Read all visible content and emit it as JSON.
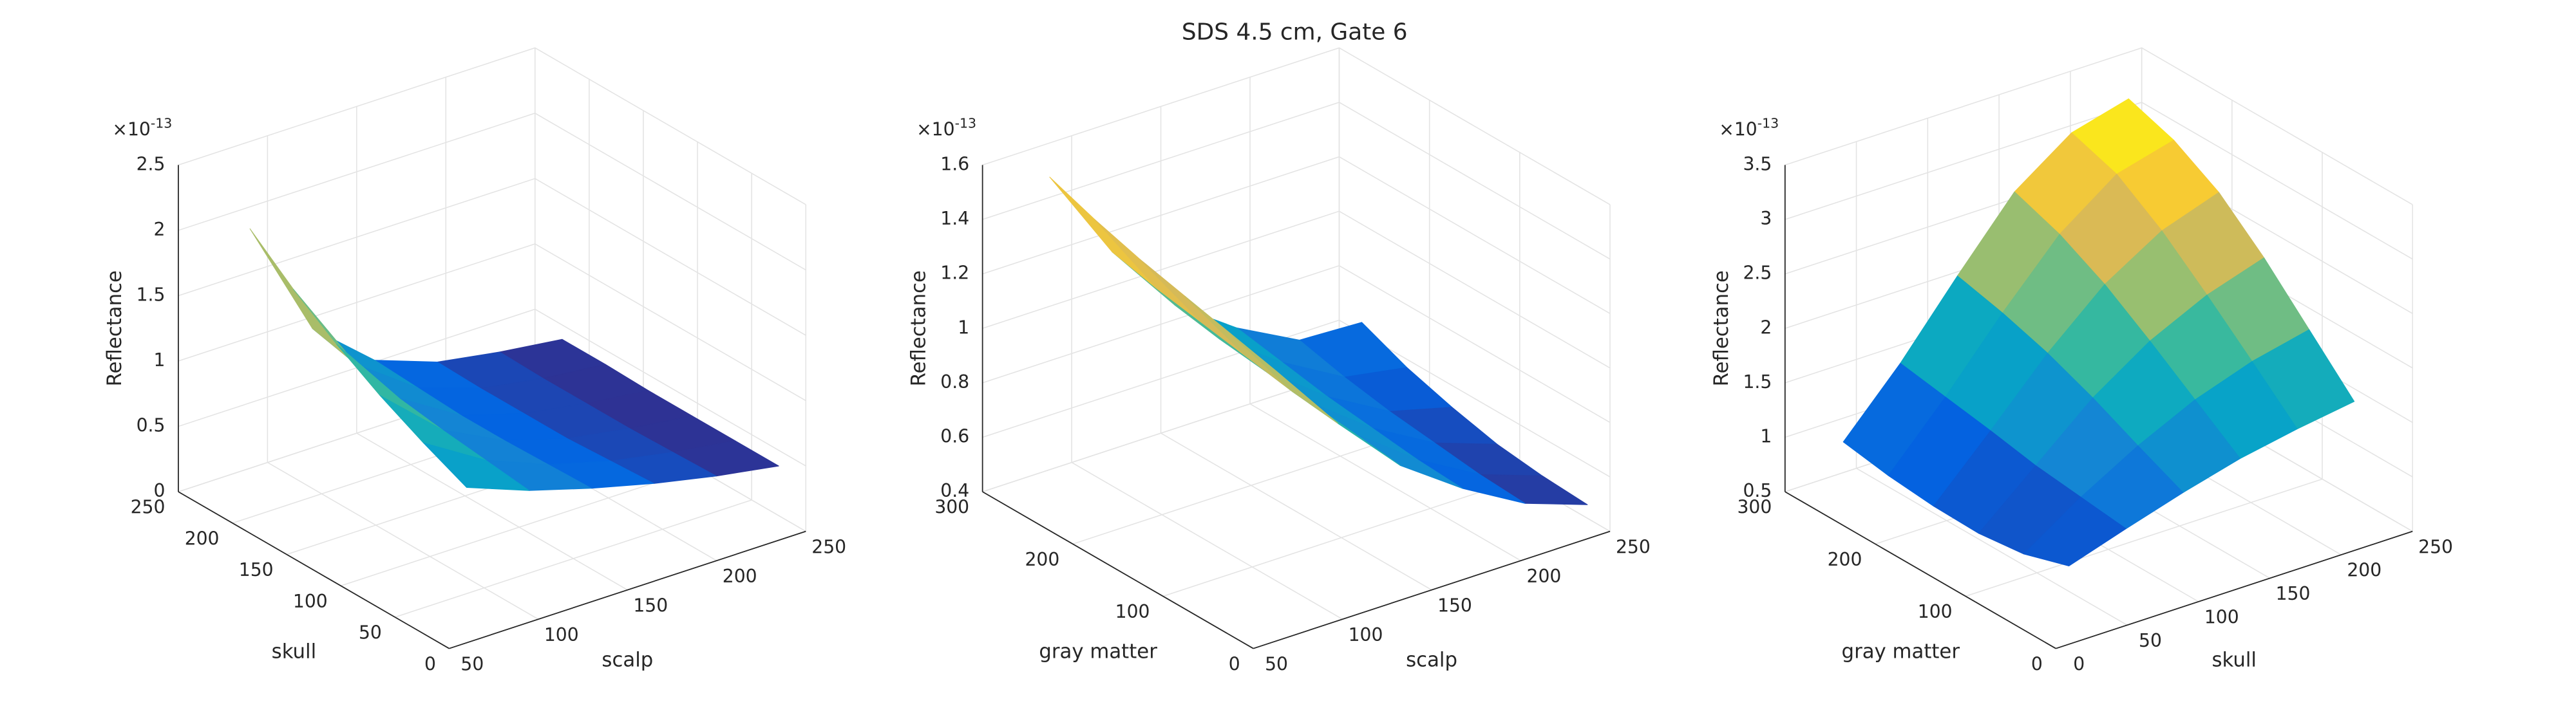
{
  "title": "SDS 4.5 cm, Gate 6",
  "chart_data": [
    {
      "type": "surface",
      "xlabel": "scalp",
      "ylabel": "skull",
      "zlabel": "Reflectance",
      "colormap": "parula",
      "grid": true,
      "zscale_base": "×10",
      "zscale_exponent": -13,
      "x": [
        75,
        110,
        145,
        180,
        215,
        250
      ],
      "y": [
        25,
        65,
        105,
        145,
        185,
        225
      ],
      "z": [
        [
          1.0,
          0.82,
          0.68,
          0.56,
          0.46,
          0.38
        ],
        [
          1.15,
          0.86,
          0.67,
          0.54,
          0.45,
          0.38
        ],
        [
          1.32,
          0.9,
          0.66,
          0.52,
          0.44,
          0.38
        ],
        [
          1.52,
          0.95,
          0.66,
          0.52,
          0.44,
          0.38
        ],
        [
          1.75,
          1.02,
          0.68,
          0.52,
          0.44,
          0.39
        ],
        [
          2.02,
          1.1,
          0.7,
          0.53,
          0.45,
          0.39
        ]
      ],
      "xlim": [
        50,
        250
      ],
      "ylim": [
        0,
        250
      ],
      "zlim": [
        0,
        2.5
      ],
      "xticks": [
        50,
        100,
        150,
        200,
        250
      ],
      "yticks": [
        0,
        50,
        100,
        150,
        200,
        250
      ],
      "zticks": [
        0,
        0.5,
        1,
        1.5,
        2,
        2.5
      ]
    },
    {
      "type": "surface",
      "xlabel": "scalp",
      "ylabel": "gray matter",
      "zlabel": "Reflectance",
      "colormap": "parula",
      "grid": true,
      "zscale_base": "×10",
      "zscale_exponent": -13,
      "x": [
        75,
        110,
        145,
        180,
        215,
        250
      ],
      "y": [
        25,
        75,
        125,
        175,
        225,
        275
      ],
      "z": [
        [
          1.32,
          1.05,
          0.82,
          0.66,
          0.53,
          0.45
        ],
        [
          1.36,
          1.07,
          0.84,
          0.67,
          0.54,
          0.46
        ],
        [
          1.4,
          1.1,
          0.86,
          0.69,
          0.56,
          0.48
        ],
        [
          1.44,
          1.13,
          0.88,
          0.71,
          0.58,
          0.52
        ],
        [
          1.49,
          1.16,
          0.9,
          0.74,
          0.61,
          0.57
        ],
        [
          1.55,
          1.2,
          0.93,
          0.77,
          0.65,
          0.64
        ]
      ],
      "xlim": [
        50,
        250
      ],
      "ylim": [
        0,
        300
      ],
      "zlim": [
        0.4,
        1.6
      ],
      "xticks": [
        50,
        100,
        150,
        200,
        250
      ],
      "yticks": [
        0,
        100,
        200,
        300
      ],
      "zticks": [
        0.4,
        0.6,
        0.8,
        1,
        1.2,
        1.4,
        1.6
      ]
    },
    {
      "type": "surface",
      "xlabel": "skull",
      "ylabel": "gray matter",
      "zlabel": "Reflectance",
      "colormap": "parula",
      "grid": true,
      "zscale_base": "×10",
      "zscale_exponent": -13,
      "x": [
        25,
        65,
        105,
        145,
        185,
        225
      ],
      "y": [
        25,
        75,
        125,
        175,
        225,
        275
      ],
      "z": [
        [
          1.03,
          1.2,
          1.36,
          1.5,
          1.6,
          1.68
        ],
        [
          0.9,
          1.25,
          1.55,
          1.8,
          1.98,
          2.1
        ],
        [
          0.85,
          1.3,
          1.75,
          2.1,
          2.35,
          2.52
        ],
        [
          0.86,
          1.38,
          1.92,
          2.38,
          2.7,
          2.88
        ],
        [
          0.9,
          1.45,
          2.05,
          2.6,
          2.98,
          3.12
        ],
        [
          0.97,
          1.52,
          2.15,
          2.75,
          3.12,
          3.26
        ]
      ],
      "xlim": [
        0,
        250
      ],
      "ylim": [
        0,
        300
      ],
      "zlim": [
        0.5,
        3.5
      ],
      "xticks": [
        0,
        50,
        100,
        150,
        200,
        250
      ],
      "yticks": [
        0,
        100,
        200,
        300
      ],
      "zticks": [
        0.5,
        1,
        1.5,
        2,
        2.5,
        3,
        3.5
      ]
    }
  ]
}
